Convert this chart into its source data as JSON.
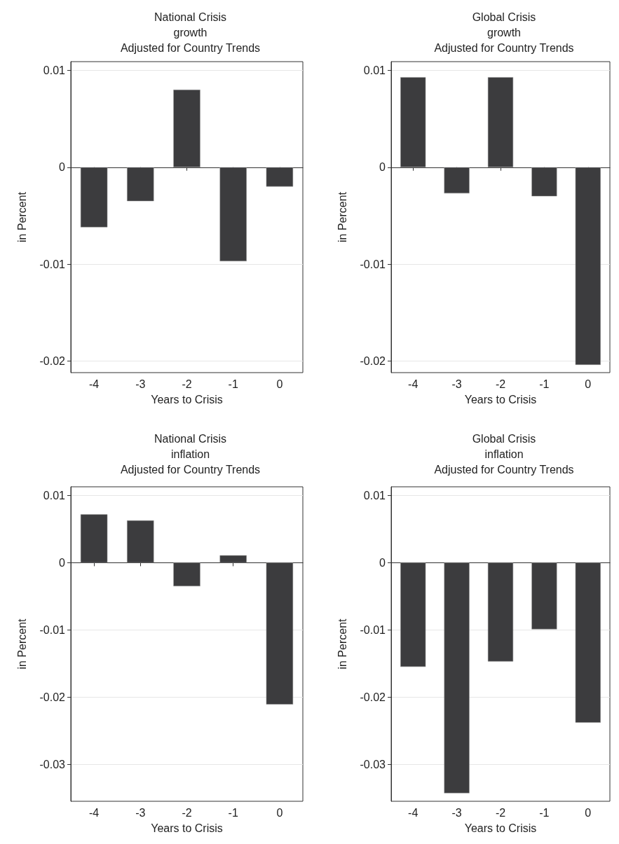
{
  "chart_data": [
    {
      "type": "bar",
      "title": "National Crisis\ngrowth\nAdjusted for Country Trends",
      "xlabel": "Years to Crisis",
      "ylabel": "in Percent",
      "categories": [
        "-4",
        "-3",
        "-2",
        "-1",
        "0"
      ],
      "color": "#3c3c3e",
      "values": [
        -0.0062,
        -0.0035,
        0.008,
        -0.0097,
        -0.002
      ],
      "ylim": [
        -0.0212,
        0.0109
      ],
      "yticks": [
        -0.02,
        -0.01,
        0,
        0.01
      ],
      "grid": "y"
    },
    {
      "type": "bar",
      "title": "Global Crisis\ngrowth\nAdjusted for Country Trends",
      "xlabel": "Years to Crisis",
      "ylabel": "in Percent",
      "categories": [
        "-4",
        "-3",
        "-2",
        "-1",
        "0"
      ],
      "color": "#3c3c3e",
      "values": [
        0.0093,
        -0.0027,
        0.0093,
        -0.003,
        -0.0204
      ],
      "ylim": [
        -0.0212,
        0.0109
      ],
      "yticks": [
        -0.02,
        -0.01,
        0,
        0.01
      ],
      "grid": "y"
    },
    {
      "type": "bar",
      "title": "National Crisis\ninflation\nAdjusted for Country Trends",
      "xlabel": "Years to Crisis",
      "ylabel": "in Percent",
      "categories": [
        "-4",
        "-3",
        "-2",
        "-1",
        "0"
      ],
      "color": "#3c3c3e",
      "values": [
        0.0072,
        0.0063,
        -0.0035,
        0.0011,
        -0.0211
      ],
      "ylim": [
        -0.0355,
        0.0113
      ],
      "yticks": [
        -0.03,
        -0.02,
        -0.01,
        0,
        0.01
      ],
      "grid": "y"
    },
    {
      "type": "bar",
      "title": "Global Crisis\ninflation\nAdjusted for Country Trends",
      "xlabel": "Years to Crisis",
      "ylabel": "in Percent",
      "categories": [
        "-4",
        "-3",
        "-2",
        "-1",
        "0"
      ],
      "color": "#3c3c3e",
      "values": [
        -0.0155,
        -0.0343,
        -0.0147,
        -0.0099,
        -0.0238
      ],
      "ylim": [
        -0.0355,
        0.0113
      ],
      "yticks": [
        -0.03,
        -0.02,
        -0.01,
        0,
        0.01
      ],
      "grid": "y"
    }
  ]
}
